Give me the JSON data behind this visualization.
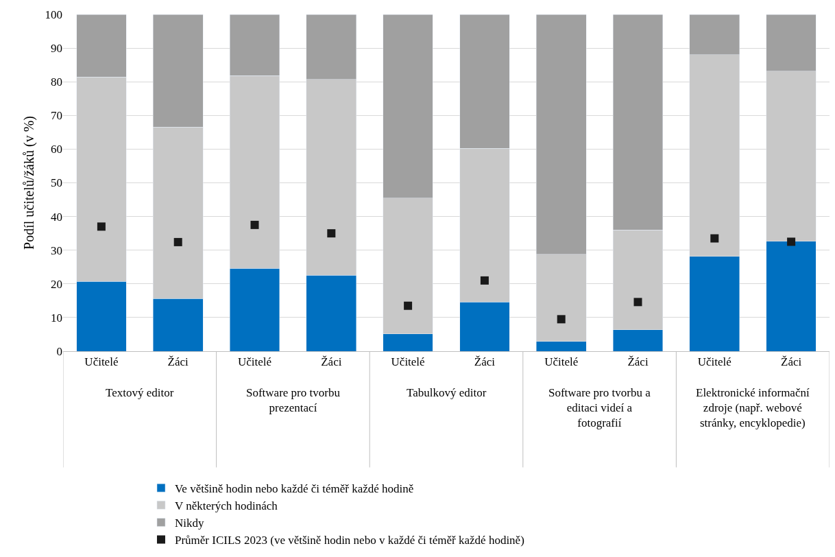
{
  "chart_data": {
    "type": "bar",
    "stacked": true,
    "ylabel": "Podíl učitelů/žáků (v %)",
    "categories": [
      "Učitelé",
      "Žáci",
      "Učitelé",
      "Žáci",
      "Učitelé",
      "Žáci",
      "Učitelé",
      "Žáci",
      "Učitelé",
      "Žáci"
    ],
    "series": [
      {
        "name": "Ve většině hodin nebo každé či téměř každé hodině",
        "color": "#0070c0",
        "values": [
          20.7,
          15.6,
          24.6,
          22.6,
          5.1,
          14.6,
          2.9,
          6.4,
          28.2,
          32.6
        ]
      },
      {
        "name": "V některých hodinách",
        "color": "#c8c8c8",
        "values": [
          60.7,
          50.9,
          57.2,
          58.1,
          40.4,
          45.6,
          25.9,
          29.6,
          59.8,
          50.5
        ]
      },
      {
        "name": "Nikdy",
        "color": "#a0a0a0",
        "values": [
          18.6,
          33.5,
          18.2,
          19.3,
          54.5,
          39.8,
          71.2,
          64.0,
          12.0,
          16.9
        ]
      },
      {
        "name": "Průměr ICILS 2023 (ve většině hodin nebo v každé či téměř každé hodině)",
        "type": "scatter",
        "marker": "square",
        "color": "#1a1a1a",
        "values": [
          37.0,
          32.4,
          37.5,
          35.0,
          13.5,
          21.0,
          9.5,
          14.6,
          33.5,
          32.5
        ]
      }
    ],
    "annotations": [
      "Textový editor",
      "Software pro tvorbu prezentací",
      "Tabulkový editor",
      "Software pro tvorbu a editaci videí a fotografií",
      "Elektronické informační zdroje (např. webové stránky, encyklopedie)"
    ],
    "ylim": [
      0,
      100
    ],
    "yticks": [
      0,
      10,
      20,
      30,
      40,
      50,
      60,
      70,
      80,
      90,
      100
    ],
    "grid": "y",
    "legend": "bottom"
  }
}
